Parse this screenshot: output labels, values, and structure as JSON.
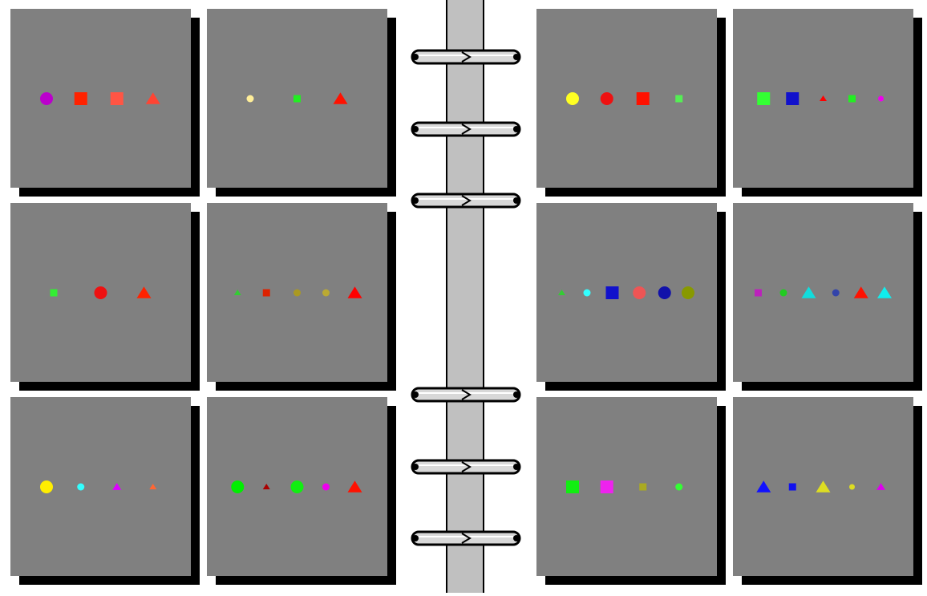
{
  "colors": {
    "background": "#ffffff",
    "card": "#808080",
    "card_shadow": "#000000",
    "spine": "#c0c0c0",
    "ring": "#d8d8d8",
    "ring_outline": "#000000"
  },
  "left_page": {
    "cards": [
      {
        "shapes": [
          {
            "type": "circle",
            "color": "#bb00cc",
            "size": "large"
          },
          {
            "type": "square",
            "color": "#ff2200",
            "size": "large"
          },
          {
            "type": "square",
            "color": "#ff5544",
            "size": "large"
          },
          {
            "type": "triangle",
            "color": "#ff4433",
            "size": "large"
          }
        ]
      },
      {
        "shapes": [
          {
            "type": "circle",
            "color": "#ffee99",
            "size": "small"
          },
          {
            "type": "square",
            "color": "#22ee22",
            "size": "small"
          },
          {
            "type": "triangle",
            "color": "#ff1100",
            "size": "large"
          }
        ]
      },
      {
        "shapes": [
          {
            "type": "square",
            "color": "#33ee33",
            "size": "small"
          },
          {
            "type": "circle",
            "color": "#ee1111",
            "size": "large"
          },
          {
            "type": "triangle",
            "color": "#ff2200",
            "size": "large"
          }
        ]
      },
      {
        "shapes": [
          {
            "type": "triangle",
            "color": "#33cc33",
            "size": "tiny"
          },
          {
            "type": "square",
            "color": "#dd2200",
            "size": "small"
          },
          {
            "type": "circle",
            "color": "#aa9922",
            "size": "small"
          },
          {
            "type": "circle",
            "color": "#bbaa33",
            "size": "small"
          },
          {
            "type": "triangle",
            "color": "#ff0000",
            "size": "large"
          }
        ]
      },
      {
        "shapes": [
          {
            "type": "circle",
            "color": "#ffee00",
            "size": "large"
          },
          {
            "type": "circle",
            "color": "#33ffff",
            "size": "small"
          },
          {
            "type": "triangle",
            "color": "#dd00ff",
            "size": "small"
          },
          {
            "type": "triangle",
            "color": "#ff6633",
            "size": "tiny"
          }
        ]
      },
      {
        "shapes": [
          {
            "type": "circle",
            "color": "#00ee00",
            "size": "large"
          },
          {
            "type": "triangle",
            "color": "#aa0000",
            "size": "tiny"
          },
          {
            "type": "circle",
            "color": "#11ee11",
            "size": "large"
          },
          {
            "type": "circle",
            "color": "#ee00ee",
            "size": "small"
          },
          {
            "type": "triangle",
            "color": "#ff1100",
            "size": "large"
          }
        ]
      }
    ]
  },
  "right_page": {
    "cards": [
      {
        "shapes": [
          {
            "type": "circle",
            "color": "#ffff22",
            "size": "large"
          },
          {
            "type": "circle",
            "color": "#ee1111",
            "size": "large"
          },
          {
            "type": "square",
            "color": "#ff1100",
            "size": "large"
          },
          {
            "type": "square",
            "color": "#55ee55",
            "size": "small"
          }
        ]
      },
      {
        "shapes": [
          {
            "type": "square",
            "color": "#33ff33",
            "size": "large"
          },
          {
            "type": "square",
            "color": "#1111cc",
            "size": "large"
          },
          {
            "type": "triangle",
            "color": "#ff0000",
            "size": "tiny"
          },
          {
            "type": "square",
            "color": "#22ee22",
            "size": "small"
          },
          {
            "type": "circle",
            "color": "#ee00ee",
            "size": "tiny"
          }
        ]
      },
      {
        "shapes": [
          {
            "type": "triangle",
            "color": "#33cc33",
            "size": "tiny"
          },
          {
            "type": "circle",
            "color": "#33ffff",
            "size": "small"
          },
          {
            "type": "square",
            "color": "#1111cc",
            "size": "large"
          },
          {
            "type": "circle",
            "color": "#ee5555",
            "size": "large"
          },
          {
            "type": "circle",
            "color": "#1111aa",
            "size": "large"
          },
          {
            "type": "circle",
            "color": "#889900",
            "size": "large"
          }
        ]
      },
      {
        "shapes": [
          {
            "type": "square",
            "color": "#bb22bb",
            "size": "small"
          },
          {
            "type": "circle",
            "color": "#22cc22",
            "size": "small"
          },
          {
            "type": "triangle",
            "color": "#11dddd",
            "size": "large"
          },
          {
            "type": "circle",
            "color": "#3344aa",
            "size": "small"
          },
          {
            "type": "triangle",
            "color": "#ff1100",
            "size": "large"
          },
          {
            "type": "triangle",
            "color": "#11eeee",
            "size": "large"
          }
        ]
      },
      {
        "shapes": [
          {
            "type": "square",
            "color": "#11ee11",
            "size": "large"
          },
          {
            "type": "square",
            "color": "#ee22ee",
            "size": "large"
          },
          {
            "type": "square",
            "color": "#aaaa22",
            "size": "small"
          },
          {
            "type": "circle",
            "color": "#33ff33",
            "size": "small"
          }
        ]
      },
      {
        "shapes": [
          {
            "type": "triangle",
            "color": "#1111ff",
            "size": "large"
          },
          {
            "type": "square",
            "color": "#1111ee",
            "size": "small"
          },
          {
            "type": "triangle",
            "color": "#dddd22",
            "size": "large"
          },
          {
            "type": "circle",
            "color": "#dddd22",
            "size": "tiny"
          },
          {
            "type": "triangle",
            "color": "#dd00ee",
            "size": "small"
          }
        ]
      }
    ]
  }
}
